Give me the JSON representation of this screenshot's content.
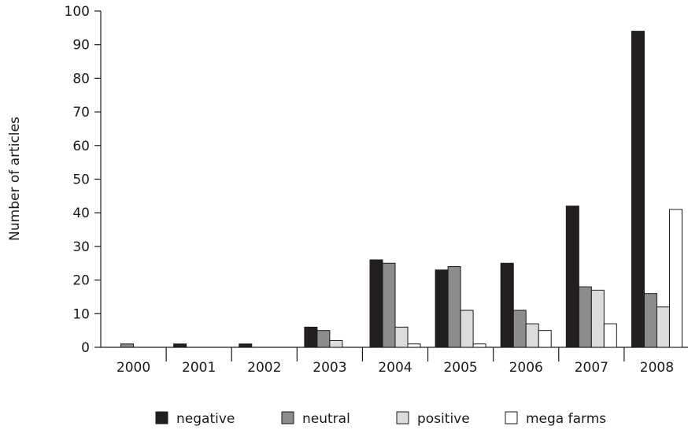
{
  "chart_data": {
    "type": "bar",
    "title": "",
    "xlabel": "",
    "ylabel": "Number of articles",
    "ylim": [
      0,
      100
    ],
    "yticks": [
      0,
      10,
      20,
      30,
      40,
      50,
      60,
      70,
      80,
      90,
      100
    ],
    "categories": [
      "2000",
      "2001",
      "2002",
      "2003",
      "2004",
      "2005",
      "2006",
      "2007",
      "2008"
    ],
    "series": [
      {
        "name": "negative",
        "color": "#231f20",
        "values": [
          0,
          1,
          1,
          6,
          26,
          23,
          25,
          42,
          94
        ]
      },
      {
        "name": "neutral",
        "color": "#8c8c8c",
        "values": [
          1,
          0,
          0,
          5,
          25,
          24,
          11,
          18,
          16
        ]
      },
      {
        "name": "positive",
        "color": "#dcdcdc",
        "values": [
          0,
          0,
          0,
          2,
          6,
          11,
          7,
          17,
          12
        ]
      },
      {
        "name": "mega farms",
        "color": "#ffffff",
        "values": [
          0,
          0,
          0,
          0,
          1,
          1,
          5,
          7,
          41
        ]
      }
    ],
    "grid": false,
    "legend": "bottom"
  }
}
